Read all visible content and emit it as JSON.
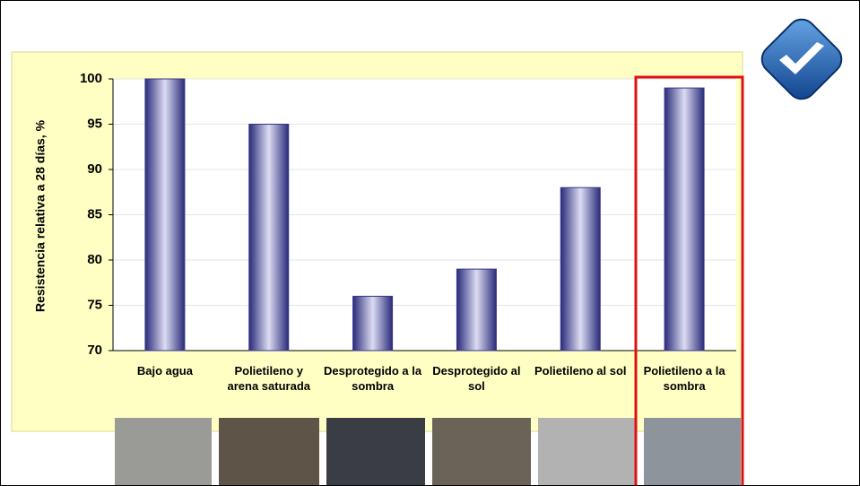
{
  "chart_data": {
    "type": "bar",
    "ylabel": "Resistencia relativa a 28 días, %",
    "categories": [
      "Bajo agua",
      "Polietileno y arena saturada",
      "Desprotegido a la sombra",
      "Desprotegido al sol",
      "Polietileno al sol",
      "Polietileno a la sombra"
    ],
    "values": [
      100,
      95,
      76,
      79,
      88,
      99
    ],
    "color": "#35368a",
    "ylim": [
      70,
      100
    ],
    "yticks": [
      70,
      75,
      80,
      85,
      90,
      95,
      100
    ],
    "grid": true
  }
}
